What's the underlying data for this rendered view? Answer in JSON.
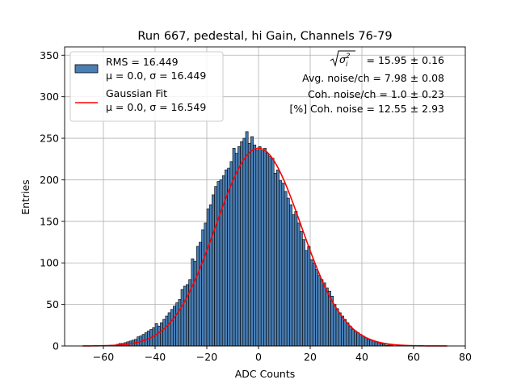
{
  "chart_data": {
    "type": "bar",
    "title": "Run 667, pedestal, hi Gain, Channels 76-79",
    "xlabel": "ADC Counts",
    "ylabel": "Entries",
    "xlim": [
      -75,
      80
    ],
    "ylim": [
      0,
      360
    ],
    "xticks": [
      -60,
      -40,
      -20,
      0,
      20,
      40,
      60,
      80
    ],
    "yticks": [
      0,
      50,
      100,
      150,
      200,
      250,
      300,
      350
    ],
    "xtick_labels": [
      "−60",
      "−40",
      "−20",
      "0",
      "20",
      "40",
      "60",
      "80"
    ],
    "ytick_labels": [
      "0",
      "50",
      "100",
      "150",
      "200",
      "250",
      "300",
      "350"
    ],
    "grid": true,
    "bin_width": 1,
    "bin_start": -68,
    "counts": [
      0,
      0,
      0,
      0,
      0,
      0,
      0,
      0,
      0,
      0,
      0,
      0,
      1,
      2,
      3,
      3,
      4,
      5,
      6,
      7,
      8,
      11,
      12,
      14,
      16,
      18,
      20,
      22,
      27,
      24,
      28,
      32,
      36,
      40,
      44,
      48,
      52,
      56,
      68,
      72,
      74,
      80,
      105,
      102,
      120,
      125,
      140,
      148,
      165,
      170,
      182,
      192,
      198,
      200,
      205,
      212,
      214,
      222,
      238,
      232,
      240,
      246,
      250,
      258,
      244,
      252,
      242,
      236,
      240,
      235,
      238,
      232,
      228,
      226,
      208,
      212,
      199,
      196,
      186,
      178,
      170,
      158,
      162,
      148,
      138,
      128,
      115,
      120,
      104,
      100,
      92,
      85,
      80,
      76,
      70,
      66,
      60,
      50,
      45,
      40,
      36,
      32,
      28,
      24,
      20,
      18,
      16,
      14,
      12,
      10,
      8,
      7,
      6,
      5,
      4,
      3,
      2,
      1,
      1,
      1,
      0,
      0,
      0,
      0,
      0,
      0,
      0,
      0,
      0,
      0,
      0,
      0,
      0,
      0,
      0,
      0,
      0,
      0
    ],
    "fit": {
      "type": "gaussian",
      "mu": 0.0,
      "sigma": 16.549,
      "amplitude": 238,
      "range": [
        -68,
        73
      ],
      "color": "#ff0000"
    },
    "bar_color": "#4a7fb5",
    "bar_edge_color": "#000000",
    "legend_position": "top-left",
    "legend": [
      {
        "name": "RMS = 16.449",
        "detail": "μ = 0.0, σ = 16.449",
        "marker": "patch",
        "color": "#4a7fb5"
      },
      {
        "name": "Gaussian Fit",
        "detail": "μ = 0.0, σ = 16.549",
        "marker": "line",
        "color": "#ff0000"
      }
    ],
    "annotations": [
      " = 15.95 ± 0.16",
      "Avg. noise/ch = 7.98 ± 0.08",
      "Coh. noise/ch = 1.0 ± 0.23",
      "[%] Coh. noise = 12.55 ± 2.93"
    ]
  }
}
